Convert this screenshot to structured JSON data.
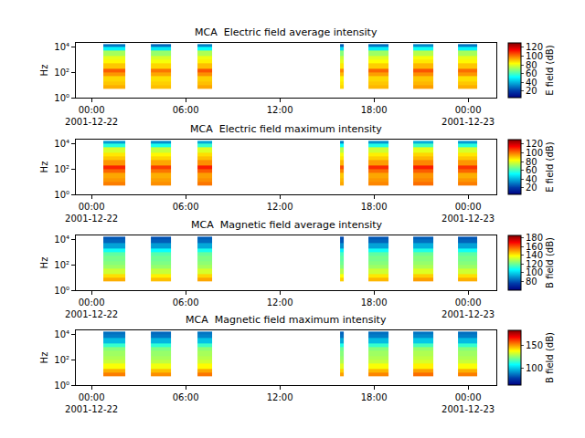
{
  "chart_data": [
    {
      "type": "heatmap",
      "title": "MCA  Electric field average intensity",
      "y_label": "Hz",
      "colorbar_label": "E field (dB)",
      "log": "y",
      "xlim": [
        "2001-12-21 23:00",
        "2001-12-23 01:48"
      ],
      "xticks": [
        {
          "value": "2001-12-22 00:00",
          "label": "00:00\n2001-12-22"
        },
        {
          "value": "2001-12-22 06:00",
          "label": "06:00"
        },
        {
          "value": "2001-12-22 12:00",
          "label": "12:00"
        },
        {
          "value": "2001-12-22 18:00",
          "label": "18:00"
        },
        {
          "value": "2001-12-23 00:00",
          "label": "00:00\n2001-12-23"
        }
      ],
      "ylim": [
        1,
        20000
      ],
      "yticks": [
        {
          "value": 1,
          "label": "10⁰"
        },
        {
          "value": 100,
          "label": "10²"
        },
        {
          "value": 10000,
          "label": "10⁴"
        }
      ],
      "x": [
        "2001-12-22 00:45",
        "2001-12-22 02:09",
        "2001-12-22 03:47",
        "2001-12-22 05:04",
        "2001-12-22 06:45",
        "2001-12-22 07:41",
        "2001-12-22 15:50",
        "2001-12-22 16:04",
        "2001-12-22 17:39",
        "2001-12-22 18:56",
        "2001-12-22 20:30",
        "2001-12-22 21:47",
        "2001-12-22 23:21",
        "2001-12-23 00:35"
      ],
      "y": [
        5,
        10,
        20,
        50,
        100,
        200,
        500,
        1000,
        2000,
        5000,
        10000,
        16000
      ],
      "z": [
        [
          93,
          null,
          91,
          null,
          94,
          null,
          88,
          null,
          92,
          null,
          95,
          null,
          93
        ],
        [
          90,
          null,
          89,
          null,
          91,
          null,
          86,
          null,
          90,
          null,
          92,
          null,
          90
        ],
        [
          88,
          null,
          87,
          null,
          89,
          null,
          84,
          null,
          88,
          null,
          90,
          null,
          87
        ],
        [
          96,
          null,
          94,
          null,
          97,
          null,
          92,
          null,
          95,
          null,
          97,
          null,
          96
        ],
        [
          103,
          null,
          100,
          null,
          104,
          null,
          98,
          null,
          102,
          null,
          104,
          null,
          101
        ],
        [
          90,
          null,
          88,
          null,
          91,
          null,
          86,
          null,
          89,
          null,
          92,
          null,
          90
        ],
        [
          84,
          null,
          82,
          null,
          85,
          null,
          80,
          null,
          83,
          null,
          86,
          null,
          84
        ],
        [
          80,
          null,
          78,
          null,
          81,
          null,
          76,
          null,
          79,
          null,
          82,
          null,
          80
        ],
        [
          72,
          null,
          70,
          null,
          73,
          null,
          68,
          null,
          71,
          null,
          74,
          null,
          72
        ],
        [
          50,
          null,
          48,
          null,
          52,
          null,
          46,
          null,
          49,
          null,
          53,
          null,
          50
        ],
        [
          30,
          null,
          28,
          null,
          32,
          null,
          26,
          null,
          29,
          null,
          33,
          null,
          30
        ]
      ],
      "zlim": [
        5,
        130
      ],
      "zticks": [
        20,
        40,
        60,
        80,
        100,
        120
      ]
    },
    {
      "type": "heatmap",
      "title": "MCA  Electric field maximum intensity",
      "y_label": "Hz",
      "colorbar_label": "E field (dB)",
      "log": "y",
      "xlim": [
        "2001-12-21 23:00",
        "2001-12-23 01:48"
      ],
      "xticks": [
        {
          "value": "2001-12-22 00:00",
          "label": "00:00\n2001-12-22"
        },
        {
          "value": "2001-12-22 06:00",
          "label": "06:00"
        },
        {
          "value": "2001-12-22 12:00",
          "label": "12:00"
        },
        {
          "value": "2001-12-22 18:00",
          "label": "18:00"
        },
        {
          "value": "2001-12-23 00:00",
          "label": "00:00\n2001-12-23"
        }
      ],
      "ylim": [
        1,
        20000
      ],
      "yticks": [
        {
          "value": 1,
          "label": "10⁰"
        },
        {
          "value": 100,
          "label": "10²"
        },
        {
          "value": 10000,
          "label": "10⁴"
        }
      ],
      "x": [
        "2001-12-22 00:45",
        "2001-12-22 02:09",
        "2001-12-22 03:47",
        "2001-12-22 05:04",
        "2001-12-22 06:45",
        "2001-12-22 07:41",
        "2001-12-22 15:50",
        "2001-12-22 16:04",
        "2001-12-22 17:39",
        "2001-12-22 18:56",
        "2001-12-22 20:30",
        "2001-12-22 21:47",
        "2001-12-22 23:21",
        "2001-12-23 00:35"
      ],
      "y": [
        5,
        10,
        20,
        50,
        100,
        200,
        500,
        1000,
        2000,
        5000,
        10000,
        16000
      ],
      "z": [
        [
          99,
          null,
          97,
          null,
          100,
          null,
          94,
          null,
          98,
          null,
          101,
          null,
          99
        ],
        [
          96,
          null,
          95,
          null,
          97,
          null,
          92,
          null,
          96,
          null,
          98,
          null,
          96
        ],
        [
          94,
          null,
          93,
          null,
          95,
          null,
          90,
          null,
          94,
          null,
          96,
          null,
          93
        ],
        [
          102,
          null,
          100,
          null,
          103,
          null,
          98,
          null,
          101,
          null,
          103,
          null,
          102
        ],
        [
          110,
          null,
          107,
          null,
          111,
          null,
          105,
          null,
          109,
          null,
          111,
          null,
          108
        ],
        [
          96,
          null,
          94,
          null,
          97,
          null,
          92,
          null,
          95,
          null,
          98,
          null,
          96
        ],
        [
          90,
          null,
          88,
          null,
          91,
          null,
          86,
          null,
          89,
          null,
          92,
          null,
          90
        ],
        [
          86,
          null,
          84,
          null,
          87,
          null,
          82,
          null,
          85,
          null,
          88,
          null,
          86
        ],
        [
          78,
          null,
          76,
          null,
          79,
          null,
          74,
          null,
          77,
          null,
          80,
          null,
          78
        ],
        [
          56,
          null,
          54,
          null,
          58,
          null,
          52,
          null,
          55,
          null,
          59,
          null,
          56
        ],
        [
          36,
          null,
          34,
          null,
          38,
          null,
          32,
          null,
          35,
          null,
          39,
          null,
          36
        ]
      ],
      "zlim": [
        5,
        130
      ],
      "zticks": [
        20,
        40,
        60,
        80,
        100,
        120
      ]
    },
    {
      "type": "heatmap",
      "title": "MCA  Magnetic field average intensity",
      "y_label": "Hz",
      "colorbar_label": "B field (dB)",
      "log": "y",
      "xlim": [
        "2001-12-21 23:00",
        "2001-12-23 01:48"
      ],
      "xticks": [
        {
          "value": "2001-12-22 00:00",
          "label": "00:00\n2001-12-22"
        },
        {
          "value": "2001-12-22 06:00",
          "label": "06:00"
        },
        {
          "value": "2001-12-22 12:00",
          "label": "12:00"
        },
        {
          "value": "2001-12-22 18:00",
          "label": "18:00"
        },
        {
          "value": "2001-12-23 00:00",
          "label": "00:00\n2001-12-23"
        }
      ],
      "ylim": [
        1,
        20000
      ],
      "yticks": [
        {
          "value": 1,
          "label": "10⁰"
        },
        {
          "value": 100,
          "label": "10²"
        },
        {
          "value": 10000,
          "label": "10⁴"
        }
      ],
      "x": [
        "2001-12-22 00:45",
        "2001-12-22 02:09",
        "2001-12-22 03:47",
        "2001-12-22 05:04",
        "2001-12-22 06:45",
        "2001-12-22 07:41",
        "2001-12-22 15:50",
        "2001-12-22 16:04",
        "2001-12-22 17:39",
        "2001-12-22 18:56",
        "2001-12-22 20:30",
        "2001-12-22 21:47",
        "2001-12-22 23:21",
        "2001-12-23 00:35"
      ],
      "y": [
        5,
        10,
        20,
        50,
        100,
        200,
        500,
        1000,
        2000,
        5000,
        10000,
        16000
      ],
      "z": [
        [
          148,
          null,
          146,
          null,
          149,
          null,
          144,
          null,
          147,
          null,
          150,
          null,
          148
        ],
        [
          142,
          null,
          140,
          null,
          143,
          null,
          138,
          null,
          141,
          null,
          144,
          null,
          142
        ],
        [
          132,
          null,
          131,
          null,
          133,
          null,
          129,
          null,
          132,
          null,
          134,
          null,
          132
        ],
        [
          126,
          null,
          125,
          null,
          127,
          null,
          123,
          null,
          126,
          null,
          128,
          null,
          126
        ],
        [
          123,
          null,
          122,
          null,
          124,
          null,
          120,
          null,
          123,
          null,
          125,
          null,
          123
        ],
        [
          121,
          null,
          120,
          null,
          122,
          null,
          118,
          null,
          121,
          null,
          123,
          null,
          121
        ],
        [
          118,
          null,
          117,
          null,
          119,
          null,
          115,
          null,
          118,
          null,
          120,
          null,
          118
        ],
        [
          108,
          null,
          107,
          null,
          109,
          null,
          105,
          null,
          108,
          null,
          110,
          null,
          108
        ],
        [
          92,
          null,
          91,
          null,
          93,
          null,
          89,
          null,
          92,
          null,
          94,
          null,
          92
        ],
        [
          82,
          null,
          81,
          null,
          83,
          null,
          80,
          null,
          82,
          null,
          84,
          null,
          82
        ],
        [
          80,
          null,
          79,
          null,
          81,
          null,
          78,
          null,
          80,
          null,
          81,
          null,
          80
        ]
      ],
      "zlim": [
        60,
        185
      ],
      "zticks": [
        80,
        100,
        120,
        140,
        160,
        180
      ]
    },
    {
      "type": "heatmap",
      "title": "MCA  Magnetic field maximum intensity",
      "y_label": "Hz",
      "colorbar_label": "B field (dB)",
      "log": "y",
      "xlim": [
        "2001-12-21 23:00",
        "2001-12-23 01:48"
      ],
      "xticks": [
        {
          "value": "2001-12-22 00:00",
          "label": "00:00\n2001-12-22"
        },
        {
          "value": "2001-12-22 06:00",
          "label": "06:00"
        },
        {
          "value": "2001-12-22 12:00",
          "label": "12:00"
        },
        {
          "value": "2001-12-22 18:00",
          "label": "18:00"
        },
        {
          "value": "2001-12-23 00:00",
          "label": "00:00\n2001-12-23"
        }
      ],
      "ylim": [
        1,
        20000
      ],
      "yticks": [
        {
          "value": 1,
          "label": "10⁰"
        },
        {
          "value": 100,
          "label": "10²"
        },
        {
          "value": 10000,
          "label": "10⁴"
        }
      ],
      "x": [
        "2001-12-22 00:45",
        "2001-12-22 02:09",
        "2001-12-22 03:47",
        "2001-12-22 05:04",
        "2001-12-22 06:45",
        "2001-12-22 07:41",
        "2001-12-22 15:50",
        "2001-12-22 16:04",
        "2001-12-22 17:39",
        "2001-12-22 18:56",
        "2001-12-22 20:30",
        "2001-12-22 21:47",
        "2001-12-22 23:21",
        "2001-12-23 00:35"
      ],
      "y": [
        5,
        10,
        20,
        50,
        100,
        200,
        500,
        1000,
        2000,
        5000,
        10000,
        16000
      ],
      "z": [
        [
          153,
          null,
          151,
          null,
          154,
          null,
          149,
          null,
          152,
          null,
          155,
          null,
          153
        ],
        [
          147,
          null,
          145,
          null,
          148,
          null,
          143,
          null,
          146,
          null,
          149,
          null,
          147
        ],
        [
          137,
          null,
          136,
          null,
          138,
          null,
          134,
          null,
          137,
          null,
          139,
          null,
          137
        ],
        [
          131,
          null,
          130,
          null,
          132,
          null,
          128,
          null,
          131,
          null,
          133,
          null,
          131
        ],
        [
          128,
          null,
          127,
          null,
          129,
          null,
          125,
          null,
          128,
          null,
          130,
          null,
          128
        ],
        [
          126,
          null,
          125,
          null,
          127,
          null,
          123,
          null,
          126,
          null,
          128,
          null,
          126
        ],
        [
          123,
          null,
          122,
          null,
          124,
          null,
          120,
          null,
          123,
          null,
          125,
          null,
          123
        ],
        [
          113,
          null,
          112,
          null,
          114,
          null,
          110,
          null,
          113,
          null,
          115,
          null,
          113
        ],
        [
          97,
          null,
          96,
          null,
          98,
          null,
          94,
          null,
          97,
          null,
          99,
          null,
          97
        ],
        [
          87,
          null,
          86,
          null,
          88,
          null,
          85,
          null,
          87,
          null,
          89,
          null,
          87
        ],
        [
          85,
          null,
          84,
          null,
          86,
          null,
          83,
          null,
          85,
          null,
          86,
          null,
          85
        ]
      ],
      "zlim": [
        62,
        183
      ],
      "zticks": [
        100,
        150
      ]
    }
  ]
}
